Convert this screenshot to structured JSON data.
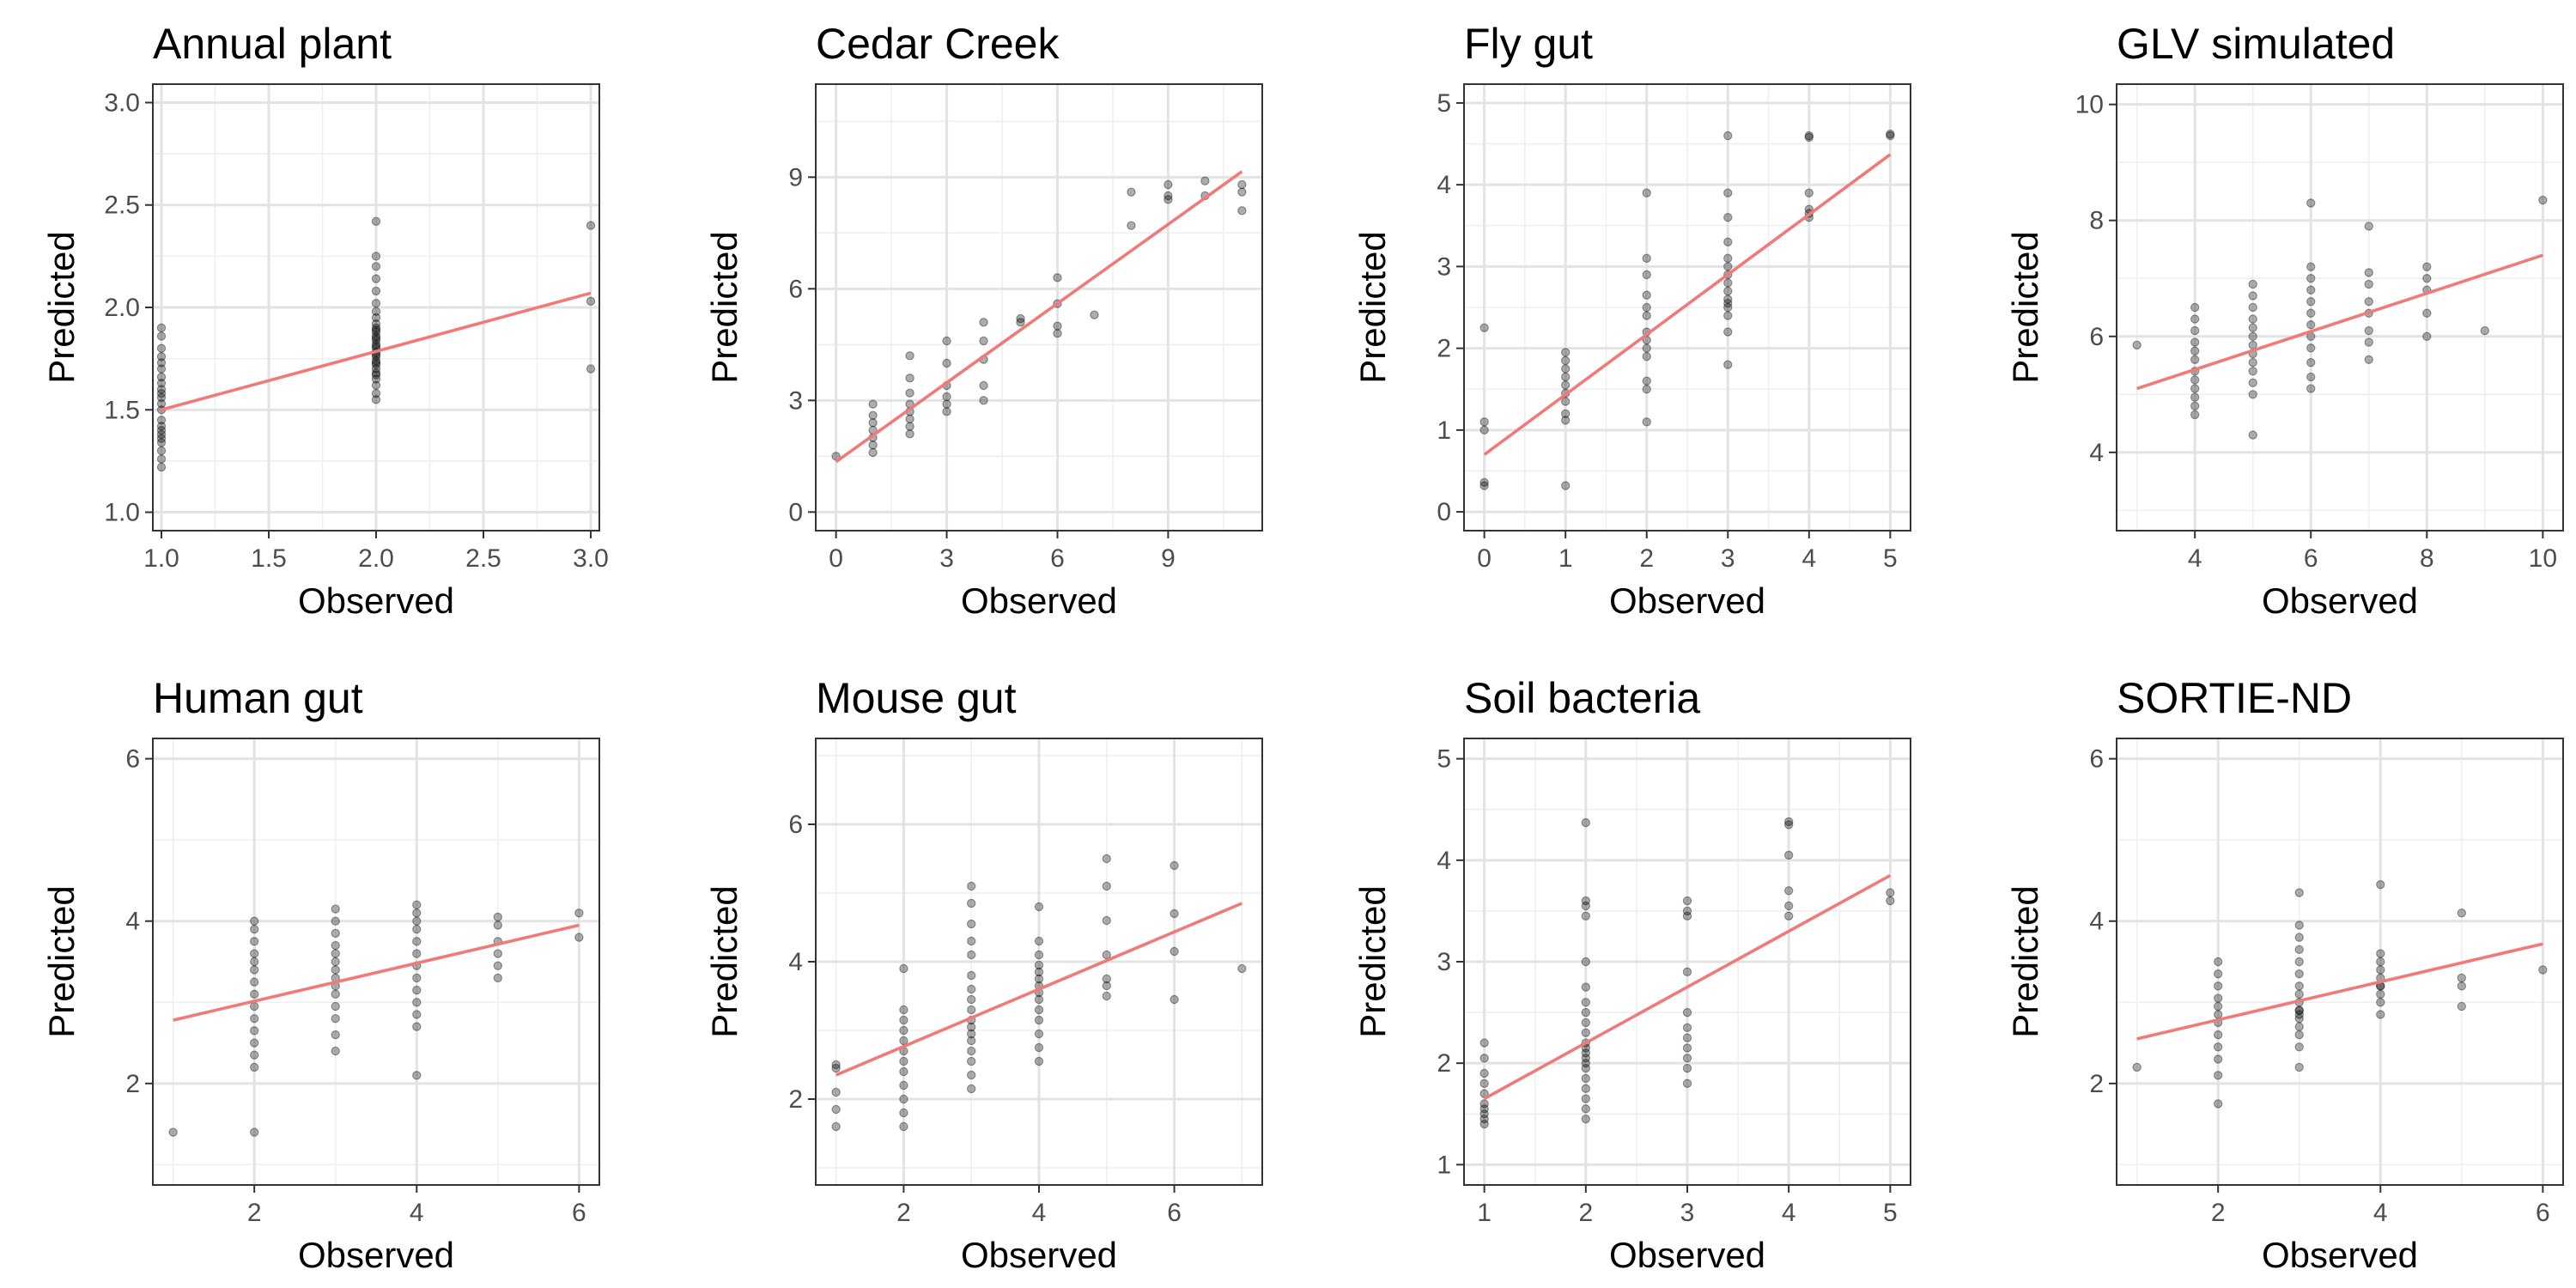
{
  "chart_data": [
    {
      "type": "scatter",
      "title": "Annual plant",
      "xlabel": "Observed",
      "ylabel": "Predicted",
      "xlim": [
        0.96,
        3.04
      ],
      "ylim": [
        0.91,
        3.09
      ],
      "xticks": [
        1.0,
        1.5,
        2.0,
        2.5,
        3.0
      ],
      "yticks": [
        1.0,
        1.5,
        2.0,
        2.5,
        3.0
      ],
      "tick_labels_x": [
        "1.0",
        "1.5",
        "2.0",
        "2.5",
        "3.0"
      ],
      "tick_labels_y": [
        "1.0",
        "1.5",
        "2.0",
        "2.5",
        "3.0"
      ],
      "trend": {
        "x": [
          1,
          3
        ],
        "y": [
          1.5,
          2.07
        ]
      },
      "points": {
        "x": [
          1,
          1,
          1,
          1,
          1,
          1,
          1,
          1,
          1,
          1,
          1,
          1,
          1,
          1,
          1,
          1,
          1,
          1,
          1,
          1,
          1,
          1,
          2,
          2,
          2,
          2,
          2,
          2,
          2,
          2,
          2,
          2,
          2,
          2,
          2,
          2,
          2,
          2,
          2,
          2,
          2,
          2,
          2,
          2,
          2,
          2,
          2,
          2,
          2,
          2,
          2,
          2,
          2,
          3,
          3,
          3
        ],
        "y": [
          1.22,
          1.26,
          1.3,
          1.34,
          1.36,
          1.38,
          1.4,
          1.42,
          1.45,
          1.5,
          1.53,
          1.56,
          1.6,
          1.63,
          1.66,
          1.7,
          1.73,
          1.76,
          1.8,
          1.86,
          1.9,
          1.58,
          1.55,
          1.58,
          1.62,
          1.65,
          1.68,
          1.7,
          1.72,
          1.74,
          1.76,
          1.78,
          1.8,
          1.82,
          1.84,
          1.86,
          1.88,
          1.9,
          1.92,
          1.95,
          1.98,
          2.02,
          2.08,
          2.14,
          2.2,
          2.25,
          2.42,
          1.67,
          1.73,
          1.77,
          1.81,
          1.85,
          1.89,
          1.7,
          2.03,
          2.4
        ]
      }
    },
    {
      "type": "scatter",
      "title": "Cedar Creek",
      "xlabel": "Observed",
      "ylabel": "Predicted",
      "xlim": [
        -0.55,
        11.55
      ],
      "ylim": [
        -0.5,
        11.5
      ],
      "xticks": [
        0,
        3,
        6,
        9
      ],
      "yticks": [
        0,
        3,
        6,
        9
      ],
      "tick_labels_x": [
        "0",
        "3",
        "6",
        "9"
      ],
      "tick_labels_y": [
        "0",
        "3",
        "6",
        "9"
      ],
      "trend": {
        "x": [
          0,
          11
        ],
        "y": [
          1.35,
          9.15
        ]
      },
      "points": {
        "x": [
          0,
          1,
          1,
          1,
          1,
          1,
          1,
          1,
          2,
          2,
          2,
          2,
          2,
          2,
          2,
          2,
          3,
          3,
          3,
          3,
          3,
          3,
          4,
          4,
          4,
          4,
          4,
          5,
          5,
          6,
          6,
          6,
          6,
          7,
          8,
          8,
          9,
          9,
          9,
          10,
          10,
          11,
          11,
          11
        ],
        "y": [
          1.5,
          1.6,
          1.8,
          2.0,
          2.2,
          2.4,
          2.6,
          2.9,
          2.1,
          2.3,
          2.5,
          2.7,
          2.9,
          3.2,
          3.6,
          4.2,
          2.7,
          2.9,
          3.1,
          3.4,
          4.0,
          4.6,
          3.0,
          3.4,
          4.1,
          4.6,
          5.1,
          5.2,
          5.1,
          4.8,
          5.0,
          5.6,
          6.3,
          5.3,
          7.7,
          8.6,
          8.4,
          8.5,
          8.8,
          8.5,
          8.9,
          8.1,
          8.6,
          8.8
        ]
      }
    },
    {
      "type": "scatter",
      "title": "Fly gut",
      "xlabel": "Observed",
      "ylabel": "Predicted",
      "xlim": [
        -0.25,
        5.25
      ],
      "ylim": [
        -0.23,
        5.23
      ],
      "xticks": [
        0,
        1,
        2,
        3,
        4,
        5
      ],
      "yticks": [
        0,
        1,
        2,
        3,
        4,
        5
      ],
      "tick_labels_x": [
        "0",
        "1",
        "2",
        "3",
        "4",
        "5"
      ],
      "tick_labels_y": [
        "0",
        "1",
        "2",
        "3",
        "4",
        "5"
      ],
      "trend": {
        "x": [
          0,
          5
        ],
        "y": [
          0.7,
          4.37
        ]
      },
      "points": {
        "x": [
          0,
          0,
          0,
          0,
          0,
          1,
          1,
          1,
          1,
          1,
          1,
          1,
          1,
          1,
          1,
          2,
          2,
          2,
          2,
          2,
          2,
          2,
          2,
          2,
          2,
          2,
          2,
          2,
          3,
          3,
          3,
          3,
          3,
          3,
          3,
          3,
          3,
          3,
          3,
          3,
          3,
          3,
          3,
          4,
          4,
          4,
          4,
          4,
          4,
          5,
          5
        ],
        "y": [
          0.32,
          0.36,
          1.0,
          1.1,
          2.25,
          0.32,
          1.12,
          1.2,
          1.35,
          1.45,
          1.55,
          1.65,
          1.75,
          1.85,
          1.95,
          1.1,
          1.5,
          1.6,
          1.9,
          2.0,
          2.1,
          2.2,
          2.4,
          2.5,
          2.65,
          2.9,
          3.1,
          3.9,
          1.8,
          2.2,
          2.4,
          2.5,
          2.6,
          2.7,
          2.8,
          2.9,
          3.0,
          3.1,
          3.3,
          3.6,
          3.9,
          4.6,
          2.55,
          3.6,
          3.65,
          3.7,
          3.9,
          4.6,
          4.58,
          4.6,
          4.62
        ]
      }
    },
    {
      "type": "scatter",
      "title": "GLV simulated",
      "xlabel": "Observed",
      "ylabel": "Predicted",
      "xlim": [
        2.65,
        10.35
      ],
      "ylim": [
        2.65,
        10.35
      ],
      "xticks": [
        4,
        6,
        8,
        10
      ],
      "yticks": [
        4,
        6,
        8,
        10
      ],
      "tick_labels_x": [
        "4",
        "6",
        "8",
        "10"
      ],
      "tick_labels_y": [
        "4",
        "6",
        "8",
        "10"
      ],
      "trend": {
        "x": [
          3,
          10
        ],
        "y": [
          5.1,
          7.4
        ]
      },
      "points": {
        "x": [
          3,
          4,
          4,
          4,
          4,
          4,
          4,
          4,
          4,
          4,
          4,
          4,
          4,
          5,
          5,
          5,
          5,
          5,
          5,
          5,
          5,
          5,
          5,
          5,
          5,
          5,
          6,
          6,
          6,
          6,
          6,
          6,
          6,
          6,
          6,
          6,
          6,
          6,
          7,
          7,
          7,
          7,
          7,
          7,
          7,
          7,
          8,
          8,
          8,
          8,
          8,
          9,
          10
        ],
        "y": [
          5.85,
          4.65,
          4.8,
          4.95,
          5.1,
          5.25,
          5.4,
          5.6,
          5.75,
          5.9,
          6.1,
          6.3,
          6.5,
          4.3,
          5.0,
          5.2,
          5.4,
          5.55,
          5.7,
          5.85,
          6.0,
          6.15,
          6.3,
          6.5,
          6.7,
          6.9,
          5.1,
          5.3,
          5.55,
          5.8,
          6.0,
          6.2,
          6.4,
          6.6,
          6.8,
          7.0,
          7.2,
          8.3,
          5.6,
          5.9,
          6.1,
          6.4,
          6.6,
          6.9,
          7.1,
          7.9,
          6.0,
          6.4,
          6.8,
          7.0,
          7.2,
          6.1,
          8.35
        ]
      }
    },
    {
      "type": "scatter",
      "title": "Human gut",
      "xlabel": "Observed",
      "ylabel": "Predicted",
      "xlim": [
        0.75,
        6.25
      ],
      "ylim": [
        0.75,
        6.25
      ],
      "xticks": [
        2,
        4,
        6
      ],
      "yticks": [
        2,
        4,
        6
      ],
      "tick_labels_x": [
        "2",
        "4",
        "6"
      ],
      "tick_labels_y": [
        "2",
        "4",
        "6"
      ],
      "trend": {
        "x": [
          1,
          6
        ],
        "y": [
          2.78,
          3.95
        ]
      },
      "points": {
        "x": [
          1,
          2,
          2,
          2,
          2,
          2,
          2,
          2,
          2,
          2,
          2,
          2,
          2,
          2,
          2,
          2,
          3,
          3,
          3,
          3,
          3,
          3,
          3,
          3,
          3,
          3,
          3,
          3,
          3,
          3,
          4,
          4,
          4,
          4,
          4,
          4,
          4,
          4,
          4,
          4,
          4,
          4,
          4,
          5,
          5,
          5,
          5,
          5,
          5,
          6,
          6
        ],
        "y": [
          1.4,
          1.4,
          2.2,
          2.35,
          2.5,
          2.65,
          2.8,
          2.95,
          3.1,
          3.25,
          3.4,
          3.5,
          3.6,
          3.75,
          3.9,
          4.0,
          2.4,
          2.6,
          2.8,
          2.95,
          3.1,
          3.2,
          3.3,
          3.4,
          3.5,
          3.6,
          3.7,
          3.85,
          4.0,
          4.15,
          2.1,
          2.7,
          2.85,
          3.0,
          3.15,
          3.3,
          3.45,
          3.6,
          3.75,
          3.9,
          4.0,
          4.1,
          4.2,
          3.3,
          3.45,
          3.6,
          3.75,
          3.95,
          4.05,
          3.8,
          4.1
        ]
      }
    },
    {
      "type": "scatter",
      "title": "Mouse gut",
      "xlabel": "Observed",
      "ylabel": "Predicted",
      "xlim": [
        0.7,
        7.3
      ],
      "ylim": [
        0.75,
        7.25
      ],
      "xticks": [
        2,
        4,
        6
      ],
      "yticks": [
        2,
        4,
        6
      ],
      "tick_labels_x": [
        "2",
        "4",
        "6"
      ],
      "tick_labels_y": [
        "2",
        "4",
        "6"
      ],
      "trend": {
        "x": [
          1,
          7
        ],
        "y": [
          2.35,
          4.85
        ]
      },
      "points": {
        "x": [
          1,
          1,
          1,
          1,
          1,
          2,
          2,
          2,
          2,
          2,
          2,
          2,
          2,
          2,
          2,
          2,
          2,
          3,
          3,
          3,
          3,
          3,
          3,
          3,
          3,
          3,
          3,
          3,
          3,
          3,
          3,
          3,
          3,
          3,
          4,
          4,
          4,
          4,
          4,
          4,
          4,
          4,
          4,
          4,
          4,
          4,
          4,
          4,
          5,
          5,
          5,
          5,
          5,
          5,
          5,
          6,
          6,
          6,
          6,
          7
        ],
        "y": [
          1.6,
          1.85,
          2.1,
          2.45,
          2.5,
          1.6,
          1.8,
          2.0,
          2.2,
          2.4,
          2.55,
          2.7,
          2.85,
          3.0,
          3.15,
          3.3,
          3.9,
          2.15,
          2.35,
          2.55,
          2.7,
          2.85,
          2.95,
          3.05,
          3.15,
          3.3,
          3.45,
          3.6,
          3.8,
          4.1,
          4.3,
          4.55,
          4.85,
          5.1,
          2.55,
          2.75,
          2.95,
          3.15,
          3.3,
          3.45,
          3.55,
          3.65,
          3.75,
          3.85,
          3.95,
          4.1,
          4.3,
          4.8,
          3.5,
          3.65,
          3.75,
          4.1,
          4.6,
          5.1,
          5.5,
          3.45,
          4.15,
          4.7,
          5.4,
          3.9
        ]
      }
    },
    {
      "type": "scatter",
      "title": "Soil bacteria",
      "xlabel": "Observed",
      "ylabel": "Predicted",
      "xlim": [
        0.8,
        5.2
      ],
      "ylim": [
        0.8,
        5.2
      ],
      "xticks": [
        1,
        2,
        3,
        4,
        5
      ],
      "yticks": [
        1,
        2,
        3,
        4,
        5
      ],
      "tick_labels_x": [
        "1",
        "2",
        "3",
        "4",
        "5"
      ],
      "tick_labels_y": [
        "1",
        "2",
        "3",
        "4",
        "5"
      ],
      "trend": {
        "x": [
          1,
          5
        ],
        "y": [
          1.65,
          3.85
        ]
      },
      "points": {
        "x": [
          1,
          1,
          1,
          1,
          1,
          1,
          1,
          1,
          1,
          1,
          2,
          2,
          2,
          2,
          2,
          2,
          2,
          2,
          2,
          2,
          2,
          2,
          2,
          2,
          2,
          2,
          2,
          2,
          2,
          2,
          2,
          3,
          3,
          3,
          3,
          3,
          3,
          3,
          3,
          3,
          3,
          3,
          4,
          4,
          4,
          4,
          4,
          4,
          5,
          5
        ],
        "y": [
          1.4,
          1.45,
          1.5,
          1.55,
          1.6,
          1.7,
          1.8,
          1.9,
          2.05,
          2.2,
          1.45,
          1.55,
          1.65,
          1.75,
          1.85,
          1.95,
          2.0,
          2.05,
          2.1,
          2.15,
          2.2,
          2.3,
          2.4,
          2.5,
          2.6,
          2.75,
          3.0,
          3.45,
          3.55,
          3.6,
          4.37,
          1.8,
          1.95,
          2.05,
          2.15,
          2.25,
          2.35,
          2.5,
          2.9,
          3.45,
          3.5,
          3.6,
          3.45,
          3.55,
          3.7,
          4.05,
          4.35,
          4.38,
          3.6,
          3.68
        ]
      }
    },
    {
      "type": "scatter",
      "title": "SORTIE-ND",
      "xlabel": "Observed",
      "ylabel": "Predicted",
      "xlim": [
        0.75,
        6.25
      ],
      "ylim": [
        0.75,
        6.25
      ],
      "xticks": [
        2,
        4,
        6
      ],
      "yticks": [
        2,
        4,
        6
      ],
      "tick_labels_x": [
        "2",
        "4",
        "6"
      ],
      "tick_labels_y": [
        "2",
        "4",
        "6"
      ],
      "trend": {
        "x": [
          1,
          6
        ],
        "y": [
          2.55,
          3.72
        ]
      },
      "points": {
        "x": [
          1,
          2,
          2,
          2,
          2,
          2,
          2,
          2,
          2,
          2,
          2,
          2,
          2,
          3,
          3,
          3,
          3,
          3,
          3,
          3,
          3,
          3,
          3,
          3,
          3,
          3,
          3,
          3,
          3,
          3,
          4,
          4,
          4,
          4,
          4,
          4,
          4,
          4,
          4,
          4,
          5,
          5,
          5,
          5,
          6
        ],
        "y": [
          2.2,
          1.75,
          2.1,
          2.3,
          2.45,
          2.6,
          2.75,
          2.85,
          2.95,
          3.05,
          3.2,
          3.35,
          3.5,
          2.2,
          2.45,
          2.6,
          2.7,
          2.8,
          2.9,
          3.0,
          3.1,
          3.2,
          3.35,
          3.5,
          3.65,
          3.8,
          3.95,
          4.35,
          2.85,
          2.9,
          2.85,
          3.0,
          3.1,
          3.2,
          3.3,
          3.4,
          3.5,
          3.6,
          3.2,
          4.45,
          2.95,
          3.2,
          3.3,
          4.1,
          3.4
        ]
      }
    }
  ]
}
